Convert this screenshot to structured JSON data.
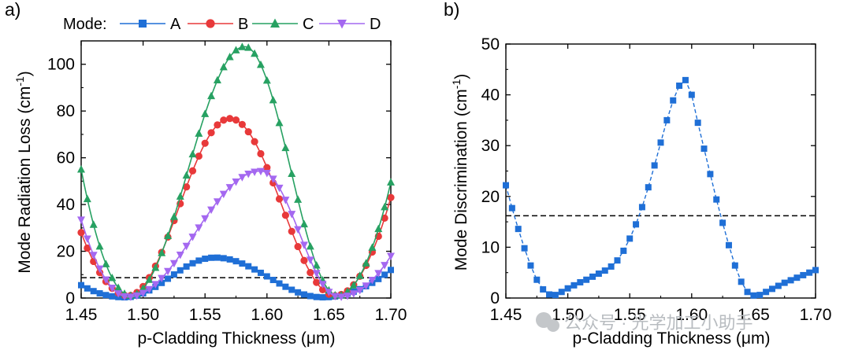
{
  "watermark": "公众号 · 光学加工小助手",
  "chart_data": [
    {
      "type": "line",
      "panel_label": "a)",
      "title": "",
      "xlabel": "p-Cladding Thickness (μm)",
      "ylabel_main": "Mode Radiation Loss (cm",
      "ylabel_sup": "-1",
      "ylabel_close": ")",
      "xlim": [
        1.45,
        1.7
      ],
      "ylim": [
        0,
        110
      ],
      "xticks": [
        1.45,
        1.5,
        1.55,
        1.6,
        1.65,
        1.7
      ],
      "xtick_labels": [
        "1.45",
        "1.50",
        "1.55",
        "1.60",
        "1.65",
        "1.70"
      ],
      "yticks": [
        0,
        20,
        40,
        60,
        80,
        100
      ],
      "ytick_labels": [
        "0",
        "20",
        "40",
        "60",
        "80",
        "100"
      ],
      "legend_title": "Mode:",
      "legend_position": "top",
      "threshold_line": 8.7,
      "series": [
        {
          "name": "A",
          "color": "#1f6fd6",
          "marker": "square",
          "peak_x": 1.558,
          "peak_y": 17.3,
          "min1_x": 1.485,
          "min1_y": 0.3,
          "min2_x": 1.645,
          "min2_y": 0.3,
          "left_y": 5.5,
          "right_y": 12.0
        },
        {
          "name": "B",
          "color": "#e8393a",
          "marker": "circle",
          "peak_x": 1.57,
          "peak_y": 76.8,
          "min1_x": 1.488,
          "min1_y": 1.0,
          "min2_x": 1.655,
          "min2_y": 1.0,
          "left_y": 28.0,
          "right_y": 43.0
        },
        {
          "name": "C",
          "color": "#27a162",
          "marker": "triangle-up",
          "peak_x": 1.582,
          "peak_y": 107.5,
          "min1_x": 1.49,
          "min1_y": 1.0,
          "min2_x": 1.657,
          "min2_y": 1.0,
          "left_y": 55.0,
          "right_y": 49.5
        },
        {
          "name": "D",
          "color": "#a468f0",
          "marker": "triangle-down",
          "peak_x": 1.595,
          "peak_y": 54.3,
          "min1_x": 1.488,
          "min1_y": 0.5,
          "min2_x": 1.658,
          "min2_y": 0.5,
          "left_y": 33.5,
          "right_y": 18.0
        }
      ]
    },
    {
      "type": "line",
      "panel_label": "b)",
      "title": "",
      "xlabel": "p-Cladding Thickness (μm)",
      "ylabel_main": "Mode Discrimination (cm",
      "ylabel_sup": "-1",
      "ylabel_close": ")",
      "xlim": [
        1.45,
        1.7
      ],
      "ylim": [
        0,
        50
      ],
      "xticks": [
        1.45,
        1.5,
        1.55,
        1.6,
        1.65,
        1.7
      ],
      "xtick_labels": [
        "1.45",
        "1.50",
        "1.55",
        "1.60",
        "1.65",
        "1.70"
      ],
      "yticks": [
        0,
        10,
        20,
        30,
        40,
        50
      ],
      "ytick_labels": [
        "0",
        "10",
        "20",
        "30",
        "40",
        "50"
      ],
      "threshold_line": 16.2,
      "series": [
        {
          "name": "Mode Discrimination",
          "color": "#1f6fd6",
          "marker": "square",
          "x": [
            1.45,
            1.455,
            1.46,
            1.465,
            1.47,
            1.475,
            1.48,
            1.485,
            1.49,
            1.495,
            1.5,
            1.505,
            1.51,
            1.515,
            1.52,
            1.525,
            1.53,
            1.535,
            1.54,
            1.545,
            1.55,
            1.555,
            1.56,
            1.565,
            1.57,
            1.575,
            1.58,
            1.585,
            1.59,
            1.595,
            1.6,
            1.605,
            1.61,
            1.615,
            1.62,
            1.625,
            1.63,
            1.635,
            1.64,
            1.645,
            1.65,
            1.655,
            1.66,
            1.665,
            1.67,
            1.675,
            1.68,
            1.685,
            1.69,
            1.695,
            1.7
          ],
          "y": [
            22.2,
            17.7,
            13.6,
            9.8,
            6.4,
            3.6,
            1.7,
            0.7,
            0.6,
            1.2,
            1.9,
            2.5,
            3.1,
            3.6,
            4.2,
            4.8,
            5.4,
            6.2,
            7.4,
            9.3,
            11.7,
            14.5,
            17.9,
            21.8,
            26.1,
            30.6,
            35.0,
            38.9,
            41.8,
            42.9,
            40.0,
            34.5,
            29.4,
            24.4,
            19.4,
            14.8,
            10.4,
            6.4,
            3.2,
            1.2,
            0.5,
            0.6,
            1.2,
            1.8,
            2.4,
            3.0,
            3.5,
            4.0,
            4.5,
            5.0,
            5.5
          ]
        }
      ]
    }
  ]
}
